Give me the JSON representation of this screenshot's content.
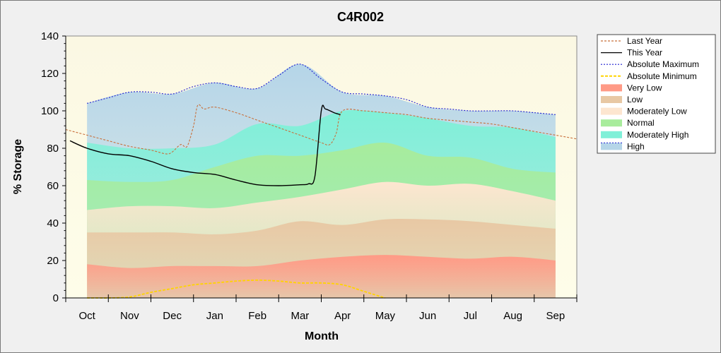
{
  "chart_data": {
    "type": "area",
    "title": "C4R002",
    "xlabel": "Month",
    "ylabel": "% Storage",
    "ylim": [
      0,
      140
    ],
    "yticks": [
      0,
      20,
      40,
      60,
      80,
      100,
      120,
      140
    ],
    "categories": [
      "Oct",
      "Nov",
      "Dec",
      "Jan",
      "Feb",
      "Mar",
      "Apr",
      "May",
      "Jun",
      "Jul",
      "Aug",
      "Sep"
    ],
    "x_range_months": [
      -0.5,
      11.5
    ],
    "legend_position": "right",
    "bands": [
      {
        "name": "High",
        "color": "#b5d5e8",
        "values": [
          104,
          110,
          109,
          115,
          112,
          125,
          110,
          108,
          102,
          100,
          100,
          98
        ]
      },
      {
        "name": "Moderately High",
        "color": "#80f0d8",
        "values": [
          83,
          80,
          80,
          82,
          93,
          92,
          100,
          99,
          96,
          92,
          91,
          86
        ]
      },
      {
        "name": "Normal",
        "color": "#a8ec9c",
        "values": [
          63,
          62,
          63,
          70,
          76,
          76,
          79,
          83,
          76,
          75,
          69,
          67
        ]
      },
      {
        "name": "Moderately Low",
        "color": "#fde6d0",
        "values": [
          47,
          49,
          49,
          48,
          51,
          54,
          58,
          62,
          60,
          61,
          57,
          52
        ]
      },
      {
        "name": "Low",
        "color": "#e8c8a4",
        "values": [
          35,
          35,
          35,
          34,
          36,
          41,
          39,
          42,
          42,
          41,
          39,
          37
        ]
      },
      {
        "name": "Very Low",
        "color": "#ff9a86",
        "values": [
          18,
          16,
          17,
          17,
          17,
          20,
          22,
          23,
          22,
          21,
          22,
          20
        ]
      }
    ],
    "series": [
      {
        "name": "Last Year",
        "color": "#c8703c",
        "dash": "3,2",
        "x": [
          -0.5,
          0,
          0.5,
          1,
          1.5,
          1.85,
          2,
          2.2,
          2.35,
          2.5,
          2.6,
          2.75,
          3,
          3.5,
          4,
          4.5,
          5,
          5.5,
          5.7,
          5.85,
          6,
          6.5,
          7,
          7.5,
          8,
          8.5,
          9,
          9.5,
          10,
          10.5,
          11,
          11.5
        ],
        "values": [
          90,
          87,
          84,
          81,
          79,
          77,
          78,
          82,
          81,
          92,
          103,
          101,
          102,
          99,
          95,
          91,
          87,
          83,
          82,
          88,
          100,
          100,
          99,
          98,
          96,
          95,
          94,
          93,
          91,
          89,
          87,
          85
        ]
      },
      {
        "name": "This Year",
        "color": "#000000",
        "dash": "",
        "x": [
          -0.4,
          0,
          0.5,
          1,
          1.5,
          2,
          2.5,
          3,
          3.5,
          4,
          4.5,
          5,
          5.2,
          5.35,
          5.5,
          5.6,
          5.8,
          5.95
        ],
        "values": [
          84,
          80,
          77,
          76,
          73,
          69,
          67,
          66,
          63,
          60.5,
          60,
          60.5,
          61,
          65,
          100,
          101,
          99,
          98
        ]
      },
      {
        "name": "Absolute Maximum",
        "color": "#2020d0",
        "dash": "2,2",
        "x": [
          0,
          0.5,
          1,
          1.5,
          2,
          2.5,
          3,
          3.5,
          4,
          4.5,
          5,
          5.5,
          6,
          6.5,
          7,
          7.5,
          8,
          8.5,
          9,
          9.5,
          10,
          10.5,
          11
        ],
        "values": [
          104,
          107,
          110,
          110,
          109,
          113,
          115,
          113,
          112,
          119,
          125,
          117,
          110,
          109,
          108,
          106,
          102,
          101,
          100,
          100,
          100,
          99,
          98
        ]
      },
      {
        "name": "Absolute Minimum",
        "color": "#ffd400",
        "dash": "4,2",
        "x": [
          0,
          0.3,
          0.5,
          1,
          1.5,
          2,
          2.5,
          3,
          3.5,
          4,
          4.5,
          5,
          5.5,
          6,
          6.5,
          7
        ],
        "values": [
          0,
          0,
          0,
          0.5,
          3,
          5,
          7,
          8,
          9,
          9.5,
          9,
          8,
          8,
          7,
          3.5,
          0
        ]
      }
    ],
    "legend": [
      "Last Year",
      "This Year",
      "Absolute Maximum",
      "Absolute Minimum",
      "Very Low",
      "Low",
      "Moderately Low",
      "Normal",
      "Moderately High",
      "High"
    ]
  }
}
